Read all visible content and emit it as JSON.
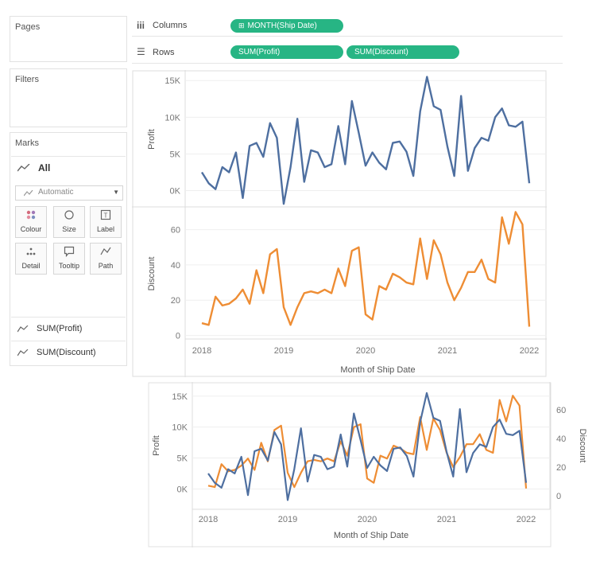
{
  "sidebar": {
    "pages_title": "Pages",
    "filters_title": "Filters",
    "marks_title": "Marks",
    "marks_all": "All",
    "mark_type": "Automatic",
    "mark_cards": [
      "Colour",
      "Size",
      "Label",
      "Detail",
      "Tooltip",
      "Path"
    ],
    "measures": [
      "SUM(Profit)",
      "SUM(Discount)"
    ]
  },
  "shelves": {
    "columns_label": "Columns",
    "rows_label": "Rows",
    "columns_pill": "MONTH(Ship Date)",
    "rows_pills": [
      "SUM(Profit)",
      "SUM(Discount)"
    ]
  },
  "colors": {
    "profit": "#4e6fa0",
    "discount": "#ee8d34",
    "pill": "#27b584"
  },
  "chart_data": [
    {
      "type": "line",
      "title": "",
      "xlabel": "Month of Ship Date",
      "x_ticks": [
        "2018",
        "2019",
        "2020",
        "2021",
        "2022"
      ],
      "x_range": [
        2018,
        2022
      ],
      "panes": [
        {
          "ylabel": "Profit",
          "y_ticks": [
            "15K",
            "10K",
            "5K",
            "0K"
          ],
          "ylim": [
            -2000,
            16000
          ],
          "series": [
            {
              "color": "#4e6fa0",
              "values": [
                2500,
                1000,
                200,
                3200,
                2500,
                5200,
                -1000,
                6100,
                6500,
                4600,
                9200,
                7200,
                -1800,
                3200,
                9800,
                1200,
                5500,
                5200,
                3200,
                3600,
                8800,
                3600,
                12200,
                7900,
                3400,
                5200,
                3800,
                2900,
                6500,
                6700,
                5300,
                2000,
                10800,
                15500,
                11500,
                11000,
                6000,
                2000,
                12900,
                2700,
                5800,
                7200,
                6800,
                10000,
                11200,
                8900,
                8700,
                9400,
                1000
              ]
            }
          ]
        },
        {
          "ylabel": "Discount",
          "y_ticks": [
            "60",
            "40",
            "20",
            "0"
          ],
          "ylim": [
            -2,
            72
          ],
          "series": [
            {
              "color": "#ee8d34",
              "values": [
                7,
                6,
                22,
                17,
                18,
                21,
                26,
                18,
                37,
                24,
                46,
                49,
                16,
                6,
                16,
                24,
                25,
                24,
                26,
                24,
                38,
                28,
                48,
                50,
                12,
                9,
                28,
                26,
                35,
                33,
                30,
                29,
                55,
                32,
                54,
                46,
                30,
                20,
                27,
                36,
                36,
                43,
                32,
                30,
                67,
                52,
                70,
                63,
                5
              ]
            }
          ]
        }
      ]
    },
    {
      "type": "line",
      "title": "",
      "xlabel": "Month of Ship Date",
      "x_ticks": [
        "2018",
        "2019",
        "2020",
        "2021",
        "2022"
      ],
      "x_range": [
        2018,
        2022
      ],
      "dual_axis": true,
      "left_axis": {
        "label": "Profit",
        "ticks": [
          "15K",
          "10K",
          "5K",
          "0K"
        ],
        "ylim": [
          -2000,
          16000
        ]
      },
      "right_axis": {
        "label": "Discount",
        "ticks": [
          "60",
          "40",
          "20",
          "0"
        ],
        "ylim": [
          -4,
          74
        ]
      }
    }
  ]
}
